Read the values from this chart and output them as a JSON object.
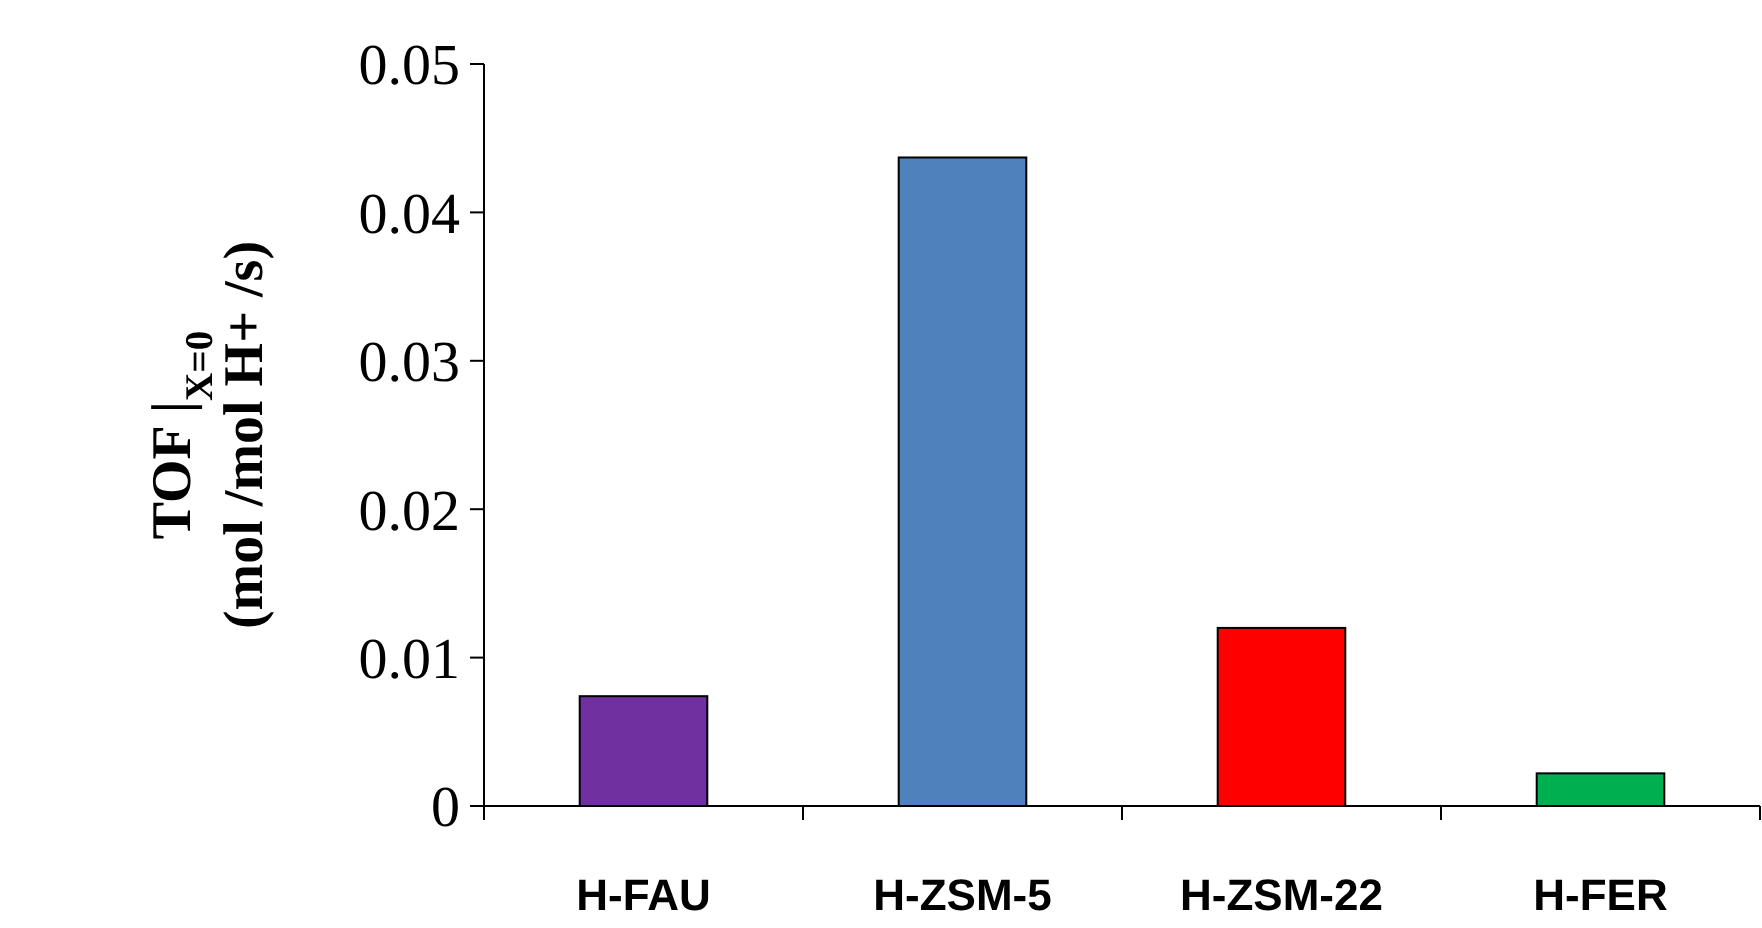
{
  "chart_data": {
    "type": "bar",
    "ylabel": "TOF |$_{X=0}$\n(mol /mol H+ /s)",
    "categories": [
      "H-FAU",
      "H-ZSM-5",
      "H-ZSM-22",
      "H-FER"
    ],
    "values": [
      0.0074,
      0.0437,
      0.012,
      0.0022
    ],
    "colors": [
      "#7030a0",
      "#4f81bd",
      "#ff0000",
      "#00b050"
    ],
    "ylim": [
      0,
      0.05
    ],
    "yticks": [
      0,
      0.01,
      0.02,
      0.03,
      0.04,
      0.05
    ],
    "grid": false
  }
}
